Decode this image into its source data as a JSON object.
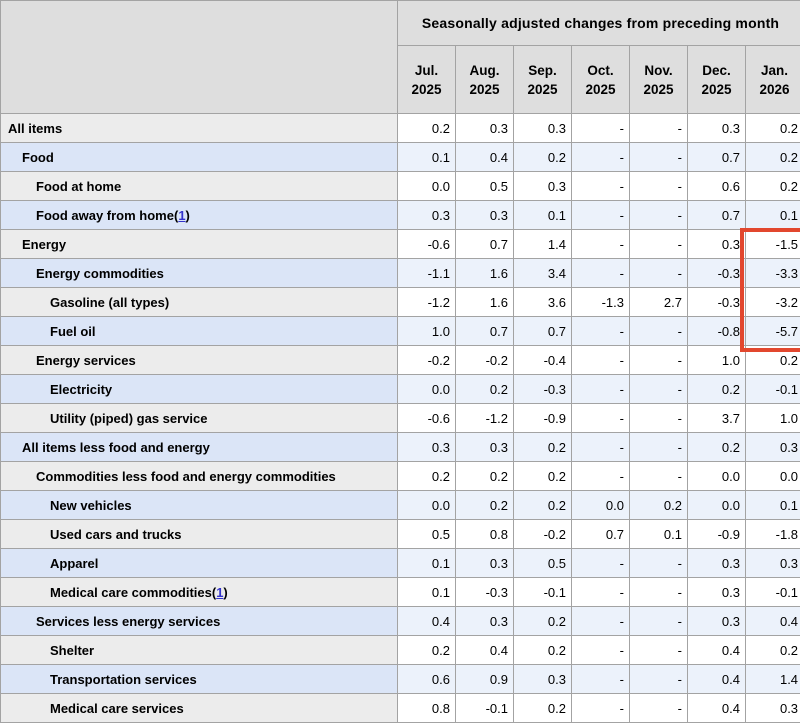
{
  "chart_data": {
    "type": "table",
    "title": "Seasonally adjusted changes from preceding month",
    "columns": [
      "Jul. 2025",
      "Aug. 2025",
      "Sep. 2025",
      "Oct. 2025",
      "Nov. 2025",
      "Dec. 2025",
      "Jan. 2026"
    ],
    "rows": [
      {
        "label": "All items",
        "indent": 0,
        "footnote": null,
        "values": [
          "0.2",
          "0.3",
          "0.3",
          "-",
          "-",
          "0.3",
          "0.2"
        ]
      },
      {
        "label": "Food",
        "indent": 1,
        "footnote": null,
        "values": [
          "0.1",
          "0.4",
          "0.2",
          "-",
          "-",
          "0.7",
          "0.2"
        ]
      },
      {
        "label": "Food at home",
        "indent": 2,
        "footnote": null,
        "values": [
          "0.0",
          "0.5",
          "0.3",
          "-",
          "-",
          "0.6",
          "0.2"
        ]
      },
      {
        "label": "Food away from home",
        "indent": 2,
        "footnote": "1",
        "values": [
          "0.3",
          "0.3",
          "0.1",
          "-",
          "-",
          "0.7",
          "0.1"
        ]
      },
      {
        "label": "Energy",
        "indent": 1,
        "footnote": null,
        "values": [
          "-0.6",
          "0.7",
          "1.4",
          "-",
          "-",
          "0.3",
          "-1.5"
        ]
      },
      {
        "label": "Energy commodities",
        "indent": 2,
        "footnote": null,
        "values": [
          "-1.1",
          "1.6",
          "3.4",
          "-",
          "-",
          "-0.3",
          "-3.3"
        ]
      },
      {
        "label": "Gasoline (all types)",
        "indent": 3,
        "footnote": null,
        "values": [
          "-1.2",
          "1.6",
          "3.6",
          "-1.3",
          "2.7",
          "-0.3",
          "-3.2"
        ]
      },
      {
        "label": "Fuel oil",
        "indent": 3,
        "footnote": null,
        "values": [
          "1.0",
          "0.7",
          "0.7",
          "-",
          "-",
          "-0.8",
          "-5.7"
        ]
      },
      {
        "label": "Energy services",
        "indent": 2,
        "footnote": null,
        "values": [
          "-0.2",
          "-0.2",
          "-0.4",
          "-",
          "-",
          "1.0",
          "0.2"
        ]
      },
      {
        "label": "Electricity",
        "indent": 3,
        "footnote": null,
        "values": [
          "0.0",
          "0.2",
          "-0.3",
          "-",
          "-",
          "0.2",
          "-0.1"
        ]
      },
      {
        "label": "Utility (piped) gas service",
        "indent": 3,
        "footnote": null,
        "values": [
          "-0.6",
          "-1.2",
          "-0.9",
          "-",
          "-",
          "3.7",
          "1.0"
        ]
      },
      {
        "label": "All items less food and energy",
        "indent": 1,
        "footnote": null,
        "values": [
          "0.3",
          "0.3",
          "0.2",
          "-",
          "-",
          "0.2",
          "0.3"
        ]
      },
      {
        "label": "Commodities less food and energy commodities",
        "indent": 2,
        "footnote": null,
        "values": [
          "0.2",
          "0.2",
          "0.2",
          "-",
          "-",
          "0.0",
          "0.0"
        ]
      },
      {
        "label": "New vehicles",
        "indent": 3,
        "footnote": null,
        "values": [
          "0.0",
          "0.2",
          "0.2",
          "0.0",
          "0.2",
          "0.0",
          "0.1"
        ]
      },
      {
        "label": "Used cars and trucks",
        "indent": 3,
        "footnote": null,
        "values": [
          "0.5",
          "0.8",
          "-0.2",
          "0.7",
          "0.1",
          "-0.9",
          "-1.8"
        ]
      },
      {
        "label": "Apparel",
        "indent": 3,
        "footnote": null,
        "values": [
          "0.1",
          "0.3",
          "0.5",
          "-",
          "-",
          "0.3",
          "0.3"
        ]
      },
      {
        "label": "Medical care commodities",
        "indent": 3,
        "footnote": "1",
        "values": [
          "0.1",
          "-0.3",
          "-0.1",
          "-",
          "-",
          "0.3",
          "-0.1"
        ]
      },
      {
        "label": "Services less energy services",
        "indent": 2,
        "footnote": null,
        "values": [
          "0.4",
          "0.3",
          "0.2",
          "-",
          "-",
          "0.3",
          "0.4"
        ]
      },
      {
        "label": "Shelter",
        "indent": 3,
        "footnote": null,
        "values": [
          "0.2",
          "0.4",
          "0.2",
          "-",
          "-",
          "0.4",
          "0.2"
        ]
      },
      {
        "label": "Transportation services",
        "indent": 3,
        "footnote": null,
        "values": [
          "0.6",
          "0.9",
          "0.3",
          "-",
          "-",
          "0.4",
          "1.4"
        ]
      },
      {
        "label": "Medical care services",
        "indent": 3,
        "footnote": null,
        "values": [
          "0.8",
          "-0.1",
          "0.2",
          "-",
          "-",
          "0.4",
          "0.3"
        ]
      }
    ]
  },
  "highlight": {
    "column": "Jan. 2026",
    "rows": [
      "Energy",
      "Energy commodities",
      "Gasoline (all types)",
      "Fuel oil"
    ],
    "highlighted_values": [
      "-1.5",
      "-3.3",
      "-3.2",
      "-5.7"
    ],
    "color": "#e2472e"
  },
  "colors": {
    "header_bg": "#dedede",
    "row_gray_label": "#ececec",
    "row_gray_data": "#ffffff",
    "row_blue_label": "#dbe5f7",
    "row_blue_data": "#ecf2fb",
    "border": "#a3a3a3",
    "border_outer": "#8c8c8c",
    "link_blue": "#3333cc",
    "highlight_red": "#e2472e"
  }
}
